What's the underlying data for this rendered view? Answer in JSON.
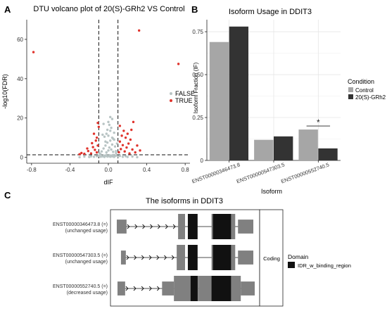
{
  "colors": {
    "false_point": "#b8c4c4",
    "true_point": "#e0332c",
    "control": "#a6a6a6",
    "treated": "#333333",
    "exon": "#808080",
    "domain": "#111111",
    "panel_bg": "#ffffff",
    "grid": "#e6e6e6",
    "threshold": "#111111"
  },
  "chart_data": [
    {
      "id": "A",
      "panel_label": "A",
      "type": "scatter",
      "title": "DTU volcano plot of 20(S)-GRh2 VS Control",
      "xlabel": "dIF",
      "ylabel": "-log10(FDR)",
      "xlim": [
        -0.85,
        0.85
      ],
      "ylim": [
        -3,
        70
      ],
      "xticks": [
        -0.8,
        -0.4,
        0.0,
        0.4,
        0.8
      ],
      "xtick_labels": [
        "-0.8",
        "-0.4",
        "0.0",
        "0.4",
        "0.8"
      ],
      "yticks": [
        0,
        20,
        40,
        60
      ],
      "ytick_labels": [
        "0",
        "20",
        "40",
        "60"
      ],
      "thresholds": {
        "x": [
          -0.1,
          0.1
        ],
        "y": 1.3
      },
      "grid": false,
      "legend": {
        "placement": "right",
        "labels": [
          "FALSE",
          "TRUE"
        ]
      },
      "series": [
        {
          "name": "FALSE",
          "points": [
            [
              -0.08,
              0.3
            ],
            [
              -0.06,
              0.5
            ],
            [
              -0.05,
              1.0
            ],
            [
              -0.04,
              0.2
            ],
            [
              -0.03,
              0.8
            ],
            [
              -0.02,
              1.2
            ],
            [
              -0.01,
              0.4
            ],
            [
              0.0,
              0.6
            ],
            [
              0.01,
              1.1
            ],
            [
              0.02,
              0.3
            ],
            [
              0.03,
              0.9
            ],
            [
              0.04,
              0.5
            ],
            [
              0.05,
              1.2
            ],
            [
              0.06,
              0.2
            ],
            [
              0.07,
              0.7
            ],
            [
              0.08,
              1.0
            ],
            [
              -0.09,
              2.0
            ],
            [
              -0.07,
              3.0
            ],
            [
              -0.05,
              4.5
            ],
            [
              -0.03,
              6.0
            ],
            [
              -0.02,
              2.5
            ],
            [
              -0.01,
              7.5
            ],
            [
              0.0,
              3.5
            ],
            [
              0.01,
              5.0
            ],
            [
              0.02,
              8.5
            ],
            [
              0.03,
              4.0
            ],
            [
              0.04,
              6.5
            ],
            [
              0.05,
              2.8
            ],
            [
              0.06,
              9.0
            ],
            [
              0.07,
              5.5
            ],
            [
              0.08,
              3.2
            ],
            [
              0.09,
              7.0
            ],
            [
              -0.04,
              10.5
            ],
            [
              -0.02,
              12.0
            ],
            [
              0.0,
              11.0
            ],
            [
              0.02,
              13.5
            ],
            [
              0.04,
              10.0
            ],
            [
              0.06,
              12.5
            ],
            [
              -0.06,
              11.5
            ],
            [
              0.03,
              15.0
            ],
            [
              -0.01,
              14.0
            ],
            [
              0.01,
              16.5
            ],
            [
              -0.03,
              8.0
            ],
            [
              0.05,
              9.5
            ],
            [
              -0.08,
              1.5
            ],
            [
              0.08,
              2.2
            ],
            [
              -0.1,
              0.8
            ],
            [
              0.1,
              0.5
            ],
            [
              -0.15,
              0.3
            ],
            [
              -0.2,
              0.2
            ],
            [
              -0.25,
              0.4
            ],
            [
              -0.3,
              0.1
            ],
            [
              0.15,
              0.3
            ],
            [
              0.2,
              0.2
            ],
            [
              0.25,
              0.4
            ],
            [
              0.3,
              0.1
            ],
            [
              -0.12,
              0.6
            ],
            [
              0.12,
              0.7
            ],
            [
              -0.18,
              0.5
            ],
            [
              0.18,
              0.6
            ],
            [
              0.0,
              18.0
            ],
            [
              -0.05,
              17.0
            ],
            [
              0.04,
              19.5
            ],
            [
              0.02,
              20.5
            ]
          ]
        },
        {
          "name": "TRUE",
          "points": [
            [
              -0.78,
              53.5
            ],
            [
              0.32,
              64.5
            ],
            [
              0.73,
              47.5
            ],
            [
              -0.12,
              2.5
            ],
            [
              -0.14,
              3.8
            ],
            [
              -0.16,
              5.2
            ],
            [
              -0.11,
              6.0
            ],
            [
              -0.18,
              2.0
            ],
            [
              -0.21,
              3.2
            ],
            [
              -0.25,
              1.8
            ],
            [
              -0.13,
              8.5
            ],
            [
              -0.17,
              7.2
            ],
            [
              -0.22,
              4.5
            ],
            [
              -0.28,
              2.2
            ],
            [
              -0.12,
              10.0
            ],
            [
              -0.15,
              12.0
            ],
            [
              -0.1,
              15.5
            ],
            [
              -0.11,
              17.5
            ],
            [
              -0.3,
              1.6
            ],
            [
              0.11,
              2.6
            ],
            [
              0.13,
              4.2
            ],
            [
              0.15,
              6.2
            ],
            [
              0.17,
              3.0
            ],
            [
              0.19,
              5.0
            ],
            [
              0.21,
              7.0
            ],
            [
              0.23,
              9.0
            ],
            [
              0.25,
              4.0
            ],
            [
              0.28,
              2.5
            ],
            [
              0.12,
              8.0
            ],
            [
              0.14,
              11.0
            ],
            [
              0.16,
              13.5
            ],
            [
              0.18,
              10.0
            ],
            [
              0.2,
              12.0
            ],
            [
              0.24,
              14.0
            ],
            [
              0.3,
              6.0
            ],
            [
              0.33,
              3.5
            ],
            [
              0.26,
              18.0
            ],
            [
              0.12,
              16.0
            ],
            [
              0.22,
              2.0
            ]
          ]
        }
      ]
    },
    {
      "id": "B",
      "panel_label": "B",
      "type": "bar",
      "title": "Isoform Usage in DDIT3",
      "xlabel": "Isoform",
      "ylabel": "Isoform Fraction (IF)",
      "ylim": [
        0,
        0.82
      ],
      "yticks": [
        0,
        0.25,
        0.5,
        0.75
      ],
      "ytick_labels": [
        "0",
        "0.25",
        "0.50",
        "0.75"
      ],
      "grid": true,
      "categories": [
        "ENST00000346473.8",
        "ENST00000547303.5",
        "ENST00000552740.5"
      ],
      "series": [
        {
          "name": "Control",
          "values": [
            0.69,
            0.12,
            0.18
          ]
        },
        {
          "name": "20(S)-GRh2",
          "values": [
            0.78,
            0.14,
            0.07
          ]
        }
      ],
      "legend": {
        "placement": "right",
        "title": "Condition",
        "labels": [
          "Control",
          "20(S)-GRh2"
        ]
      },
      "annotations": [
        {
          "category_index": 2,
          "text": "*"
        }
      ]
    },
    {
      "id": "C",
      "panel_label": "C",
      "type": "diagram",
      "title": "The isoforms in DDIT3",
      "xlim": [
        0,
        1000
      ],
      "facet_label": "Coding",
      "legend": {
        "placement": "right",
        "title": "Domain",
        "labels": [
          "IDR_w_binding_region"
        ]
      },
      "isoforms": [
        {
          "label_line1": "ENST00000346473.8 (=)",
          "label_line2": "(unchanged usage)",
          "intron": [
            50,
            950
          ],
          "exons": [
            [
              10,
              80,
              0.55
            ],
            [
              450,
              500,
              1.0
            ],
            [
              690,
              860,
              1.0
            ],
            [
              880,
              990,
              0.55
            ]
          ],
          "domains": [
            [
              520,
              590
            ],
            [
              700,
              830
            ]
          ]
        },
        {
          "label_line1": "ENST00000547303.5 (=)",
          "label_line2": "(unchanged usage)",
          "intron": [
            50,
            950
          ],
          "exons": [
            [
              40,
              75,
              0.55
            ],
            [
              440,
              500,
              1.0
            ],
            [
              690,
              860,
              1.0
            ],
            [
              880,
              990,
              0.55
            ]
          ],
          "domains": [
            [
              520,
              590
            ],
            [
              700,
              830
            ]
          ]
        },
        {
          "label_line1": "ENST00000552740.5 (=)",
          "label_line2": "(decreased usage)",
          "intron": [
            50,
            950
          ],
          "exons": [
            [
              15,
              70,
              0.55
            ],
            [
              335,
              420,
              0.55
            ],
            [
              420,
              600,
              1.0
            ],
            [
              600,
              900,
              1.0
            ],
            [
              900,
              1000,
              0.55
            ]
          ],
          "domains": [
            [
              540,
              590
            ],
            [
              690,
              830
            ]
          ]
        }
      ]
    }
  ]
}
